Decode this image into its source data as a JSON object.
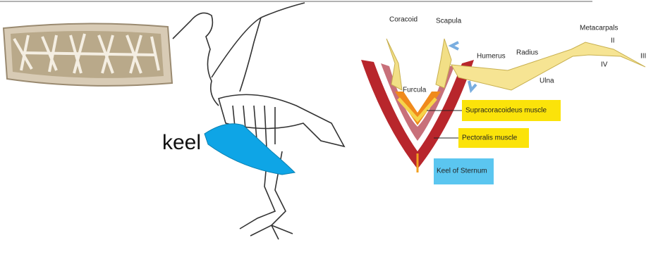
{
  "skeleton": {
    "label": "keel"
  },
  "flight_apparatus": {
    "labels": {
      "coracoid": "Coracoid",
      "scapula": "Scapula",
      "humerus": "Humerus",
      "radius": "Radius",
      "metacarpals": "Metacarpals",
      "digit_2": "II",
      "digit_3": "III",
      "digit_4": "IV",
      "ulna": "Ulna",
      "furcula": "Furcula"
    },
    "callouts": {
      "supracoracoideus": "Supracoracoideus muscle",
      "pectoralis": "Pectoralis muscle",
      "keel_of_sternum": "Keel of Sternum"
    }
  }
}
